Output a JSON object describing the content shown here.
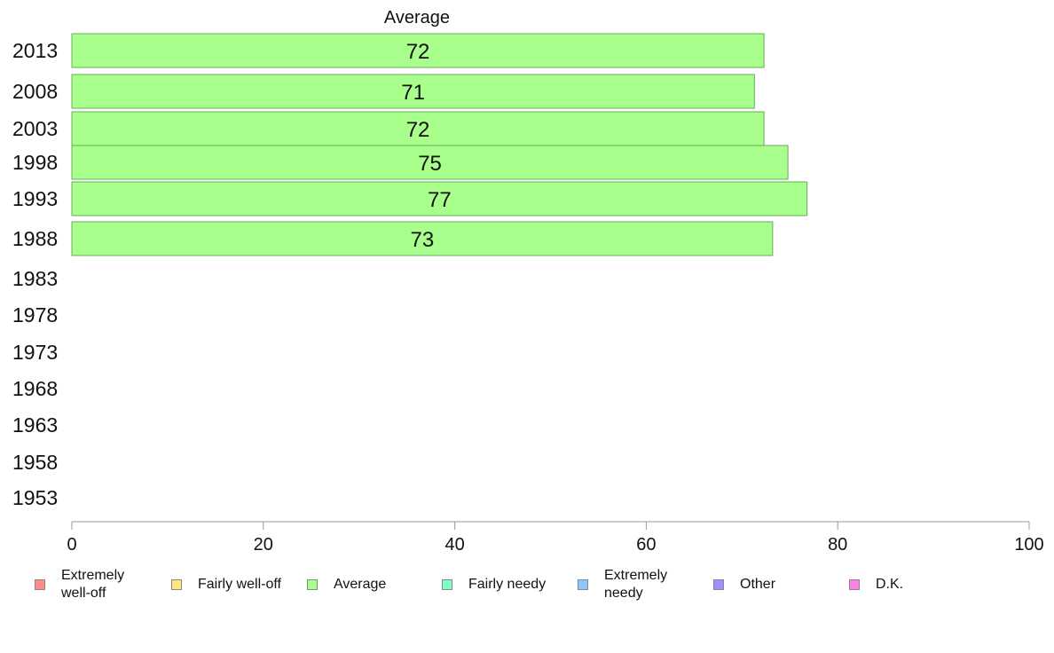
{
  "chart_data": {
    "type": "bar",
    "orientation": "horizontal",
    "title": "Average",
    "categories": [
      "2013",
      "2008",
      "2003",
      "1998",
      "1993",
      "1988",
      "1983",
      "1978",
      "1973",
      "1968",
      "1963",
      "1958",
      "1953"
    ],
    "series": [
      {
        "name": "Average",
        "color": "#a8ff8c",
        "values": [
          72.3,
          71.3,
          72.3,
          74.8,
          76.8,
          73.2,
          null,
          null,
          null,
          null,
          null,
          null,
          null
        ],
        "labels": [
          "72",
          "71",
          "72",
          "75",
          "77",
          "73",
          "",
          "",
          "",
          "",
          "",
          "",
          ""
        ]
      }
    ],
    "xlim": [
      0,
      100
    ],
    "xticks": [
      "0",
      "20",
      "40",
      "60",
      "80",
      "100"
    ],
    "legend": {
      "placement": "bottom",
      "entries": [
        {
          "label": "Extremely\nwell-off",
          "color": "#ff8a8a"
        },
        {
          "label": "Fairly well-off",
          "color": "#ffe680"
        },
        {
          "label": "Average",
          "color": "#a8ff8c"
        },
        {
          "label": "Fairly needy",
          "color": "#7dffc4"
        },
        {
          "label": "Extremely\nneedy",
          "color": "#8cc8ff"
        },
        {
          "label": "Other",
          "color": "#a58cff"
        },
        {
          "label": "D.K.",
          "color": "#ff80e6"
        }
      ]
    }
  }
}
